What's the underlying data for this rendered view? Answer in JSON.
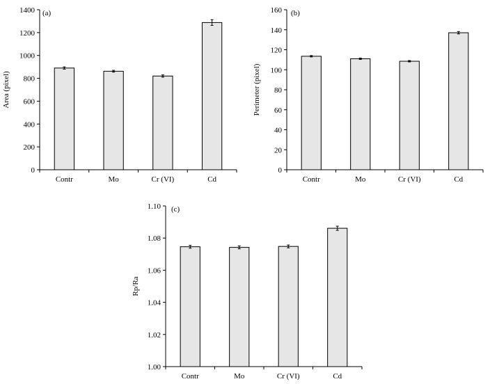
{
  "chart_data": [
    {
      "type": "bar",
      "panel_label": "(a)",
      "categories": [
        "Contr",
        "Mo",
        "Cr (VI)",
        "Cd"
      ],
      "values": [
        890,
        862,
        820,
        1288
      ],
      "errors": [
        10,
        8,
        10,
        25
      ],
      "ylabel": "Area (pixel)",
      "xlabel": "",
      "ylim": [
        0,
        1400
      ],
      "yticks": [
        0,
        200,
        400,
        600,
        800,
        1000,
        1200,
        1400
      ],
      "ytick_labels": [
        "0",
        "200",
        "400",
        "600",
        "800",
        "1000",
        "1200",
        "1400"
      ],
      "bar_color": "#e6e6e6",
      "grid": false
    },
    {
      "type": "bar",
      "panel_label": "(b)",
      "categories": [
        "Contr",
        "Mo",
        "Cr (VI)",
        "Cd"
      ],
      "values": [
        113.5,
        111,
        108.5,
        137
      ],
      "errors": [
        0.7,
        0.7,
        0.7,
        1.2
      ],
      "ylabel": "Perimeter (pixel)",
      "xlabel": "",
      "ylim": [
        0,
        160
      ],
      "yticks": [
        0,
        20,
        40,
        60,
        80,
        100,
        120,
        140,
        160
      ],
      "ytick_labels": [
        "0",
        "20",
        "40",
        "60",
        "80",
        "100",
        "120",
        "140",
        "160"
      ],
      "bar_color": "#e6e6e6",
      "grid": false
    },
    {
      "type": "bar",
      "panel_label": "(c)",
      "categories": [
        "Contr",
        "Mo",
        "Cr (VI)",
        "Cd"
      ],
      "values": [
        1.0746,
        1.0742,
        1.0748,
        1.0861
      ],
      "errors": [
        0.0009,
        0.0009,
        0.0009,
        0.0013
      ],
      "ylabel": "Rp/Ra",
      "xlabel": "",
      "ylim": [
        1.0,
        1.1
      ],
      "yticks": [
        1.0,
        1.02,
        1.04,
        1.06,
        1.08,
        1.1
      ],
      "ytick_labels": [
        "1.00",
        "1.02",
        "1.04",
        "1.06",
        "1.08",
        "1.10"
      ],
      "bar_color": "#e6e6e6",
      "grid": false
    }
  ]
}
